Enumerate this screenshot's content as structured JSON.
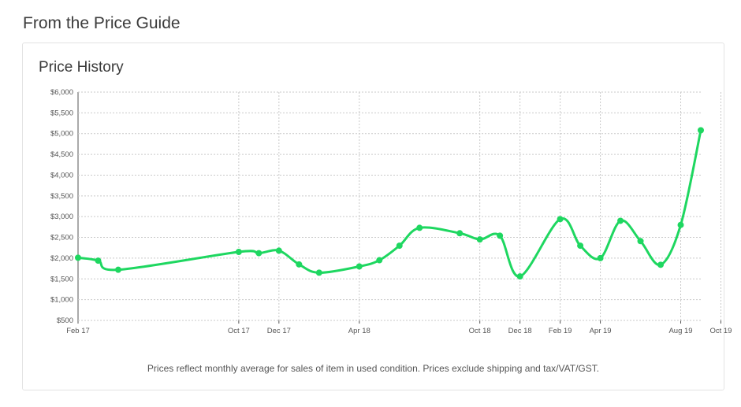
{
  "page": {
    "heading": "From the Price Guide"
  },
  "card": {
    "title": "Price History",
    "footnote": "Prices reflect monthly average for sales of item in used condition. Prices exclude shipping and tax/VAT/GST."
  },
  "colors": {
    "line": "#1ed760",
    "grid": "#c9c9c9",
    "axis": "#555555"
  },
  "chart_data": {
    "type": "line",
    "title": "Price History",
    "xlabel": "",
    "ylabel": "",
    "ylim": [
      500,
      6000
    ],
    "y_ticks": [
      500,
      1000,
      1500,
      2000,
      2500,
      3000,
      3500,
      4000,
      4500,
      5000,
      5500,
      6000
    ],
    "y_tick_labels": [
      "$500",
      "$1,000",
      "$1,500",
      "$2,000",
      "$2,500",
      "$3,000",
      "$3,500",
      "$4,000",
      "$4,500",
      "$5,000",
      "$5,500",
      "$6,000"
    ],
    "x_tick_labels": [
      "Feb 17",
      "Oct 17",
      "Dec 17",
      "Apr 18",
      "Oct 18",
      "Dec 18",
      "Feb 19",
      "Apr 19",
      "Aug 19",
      "Oct 19"
    ],
    "grid": true,
    "currency": "$",
    "series": [
      {
        "color": "#1ed760",
        "points": [
          {
            "x": "2017-02",
            "y": 2010
          },
          {
            "x": "2017-03",
            "y": 1940
          },
          {
            "x": "2017-04",
            "y": 1720
          },
          {
            "x": "2017-10",
            "y": 2150
          },
          {
            "x": "2017-11",
            "y": 2120
          },
          {
            "x": "2017-12",
            "y": 2180
          },
          {
            "x": "2018-01",
            "y": 1850
          },
          {
            "x": "2018-02",
            "y": 1650
          },
          {
            "x": "2018-04",
            "y": 1800
          },
          {
            "x": "2018-05",
            "y": 1950
          },
          {
            "x": "2018-06",
            "y": 2300
          },
          {
            "x": "2018-07",
            "y": 2730
          },
          {
            "x": "2018-09",
            "y": 2600
          },
          {
            "x": "2018-10",
            "y": 2450
          },
          {
            "x": "2018-11",
            "y": 2540
          },
          {
            "x": "2018-12",
            "y": 1560
          },
          {
            "x": "2019-02",
            "y": 2940
          },
          {
            "x": "2019-03",
            "y": 2300
          },
          {
            "x": "2019-04",
            "y": 2000
          },
          {
            "x": "2019-05",
            "y": 2900
          },
          {
            "x": "2019-06",
            "y": 2410
          },
          {
            "x": "2019-07",
            "y": 1840
          },
          {
            "x": "2019-08",
            "y": 2800
          },
          {
            "x": "2019-09",
            "y": 5080
          }
        ]
      }
    ]
  }
}
